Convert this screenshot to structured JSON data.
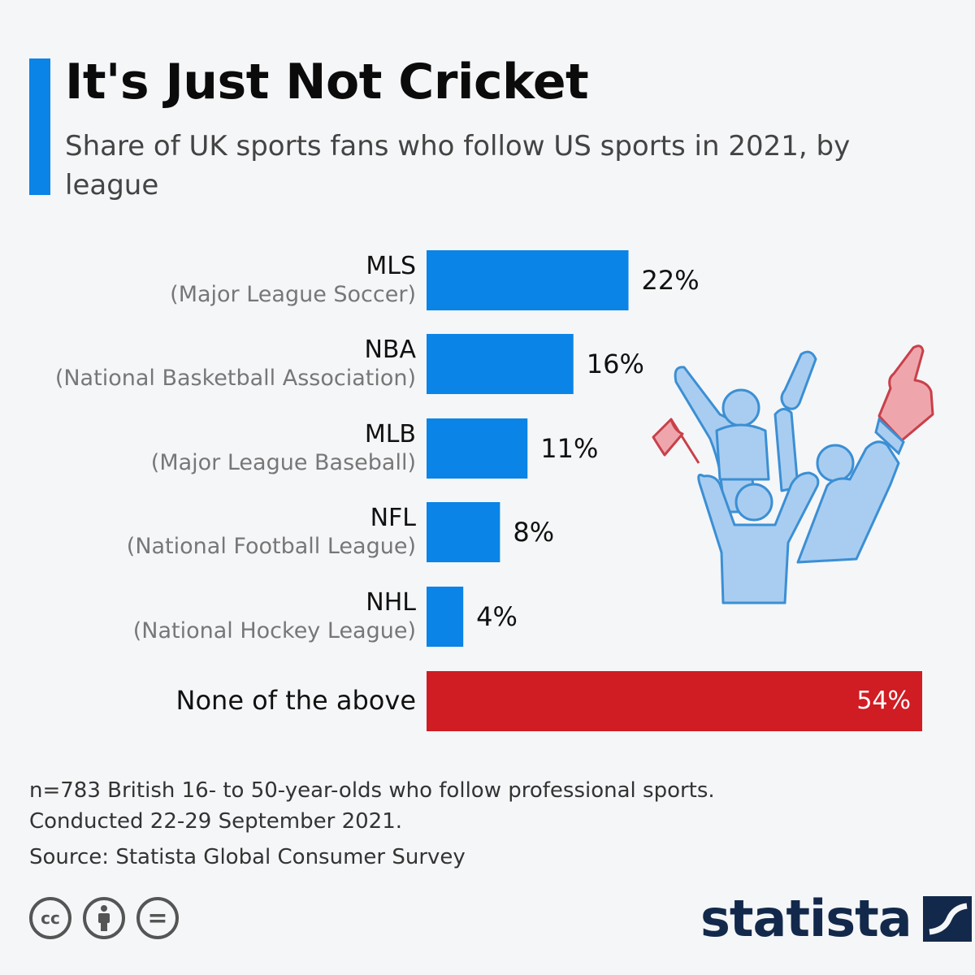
{
  "title": "It's Just Not Cricket",
  "subtitle": "Share of UK sports fans who follow US sports in 2021, by league",
  "colors": {
    "accent": "#0a84e6",
    "bar": "#0a84e6",
    "highlight": "#d01c23",
    "logo": "#13294b"
  },
  "chart_data": {
    "type": "bar",
    "orientation": "horizontal",
    "categories": [
      "MLS",
      "NBA",
      "MLB",
      "NFL",
      "NHL",
      "None of the above"
    ],
    "category_descriptions": [
      "(Major League Soccer)",
      "(National Basketball Association)",
      "(Major League Baseball)",
      "(National Football League)",
      "(National Hockey League)",
      ""
    ],
    "values": [
      22,
      16,
      11,
      8,
      4,
      54
    ],
    "value_labels": [
      "22%",
      "16%",
      "11%",
      "8%",
      "4%",
      "54%"
    ],
    "unit": "%",
    "highlighted_category": "None of the above",
    "grid": false,
    "legend": "none"
  },
  "footer": {
    "note_line1": "n=783 British 16- to 50-year-olds who follow professional sports.",
    "note_line2": "Conducted 22-29 September 2021.",
    "source": "Source: Statista Global Consumer Survey"
  },
  "license_icons": [
    {
      "icon": "cc-icon",
      "glyph": "cc"
    },
    {
      "icon": "attribution-icon",
      "glyph": ""
    },
    {
      "icon": "no-derivatives-icon",
      "glyph": "="
    }
  ],
  "logo": {
    "text": "statista"
  },
  "illustration": "cheering-fans-icon"
}
